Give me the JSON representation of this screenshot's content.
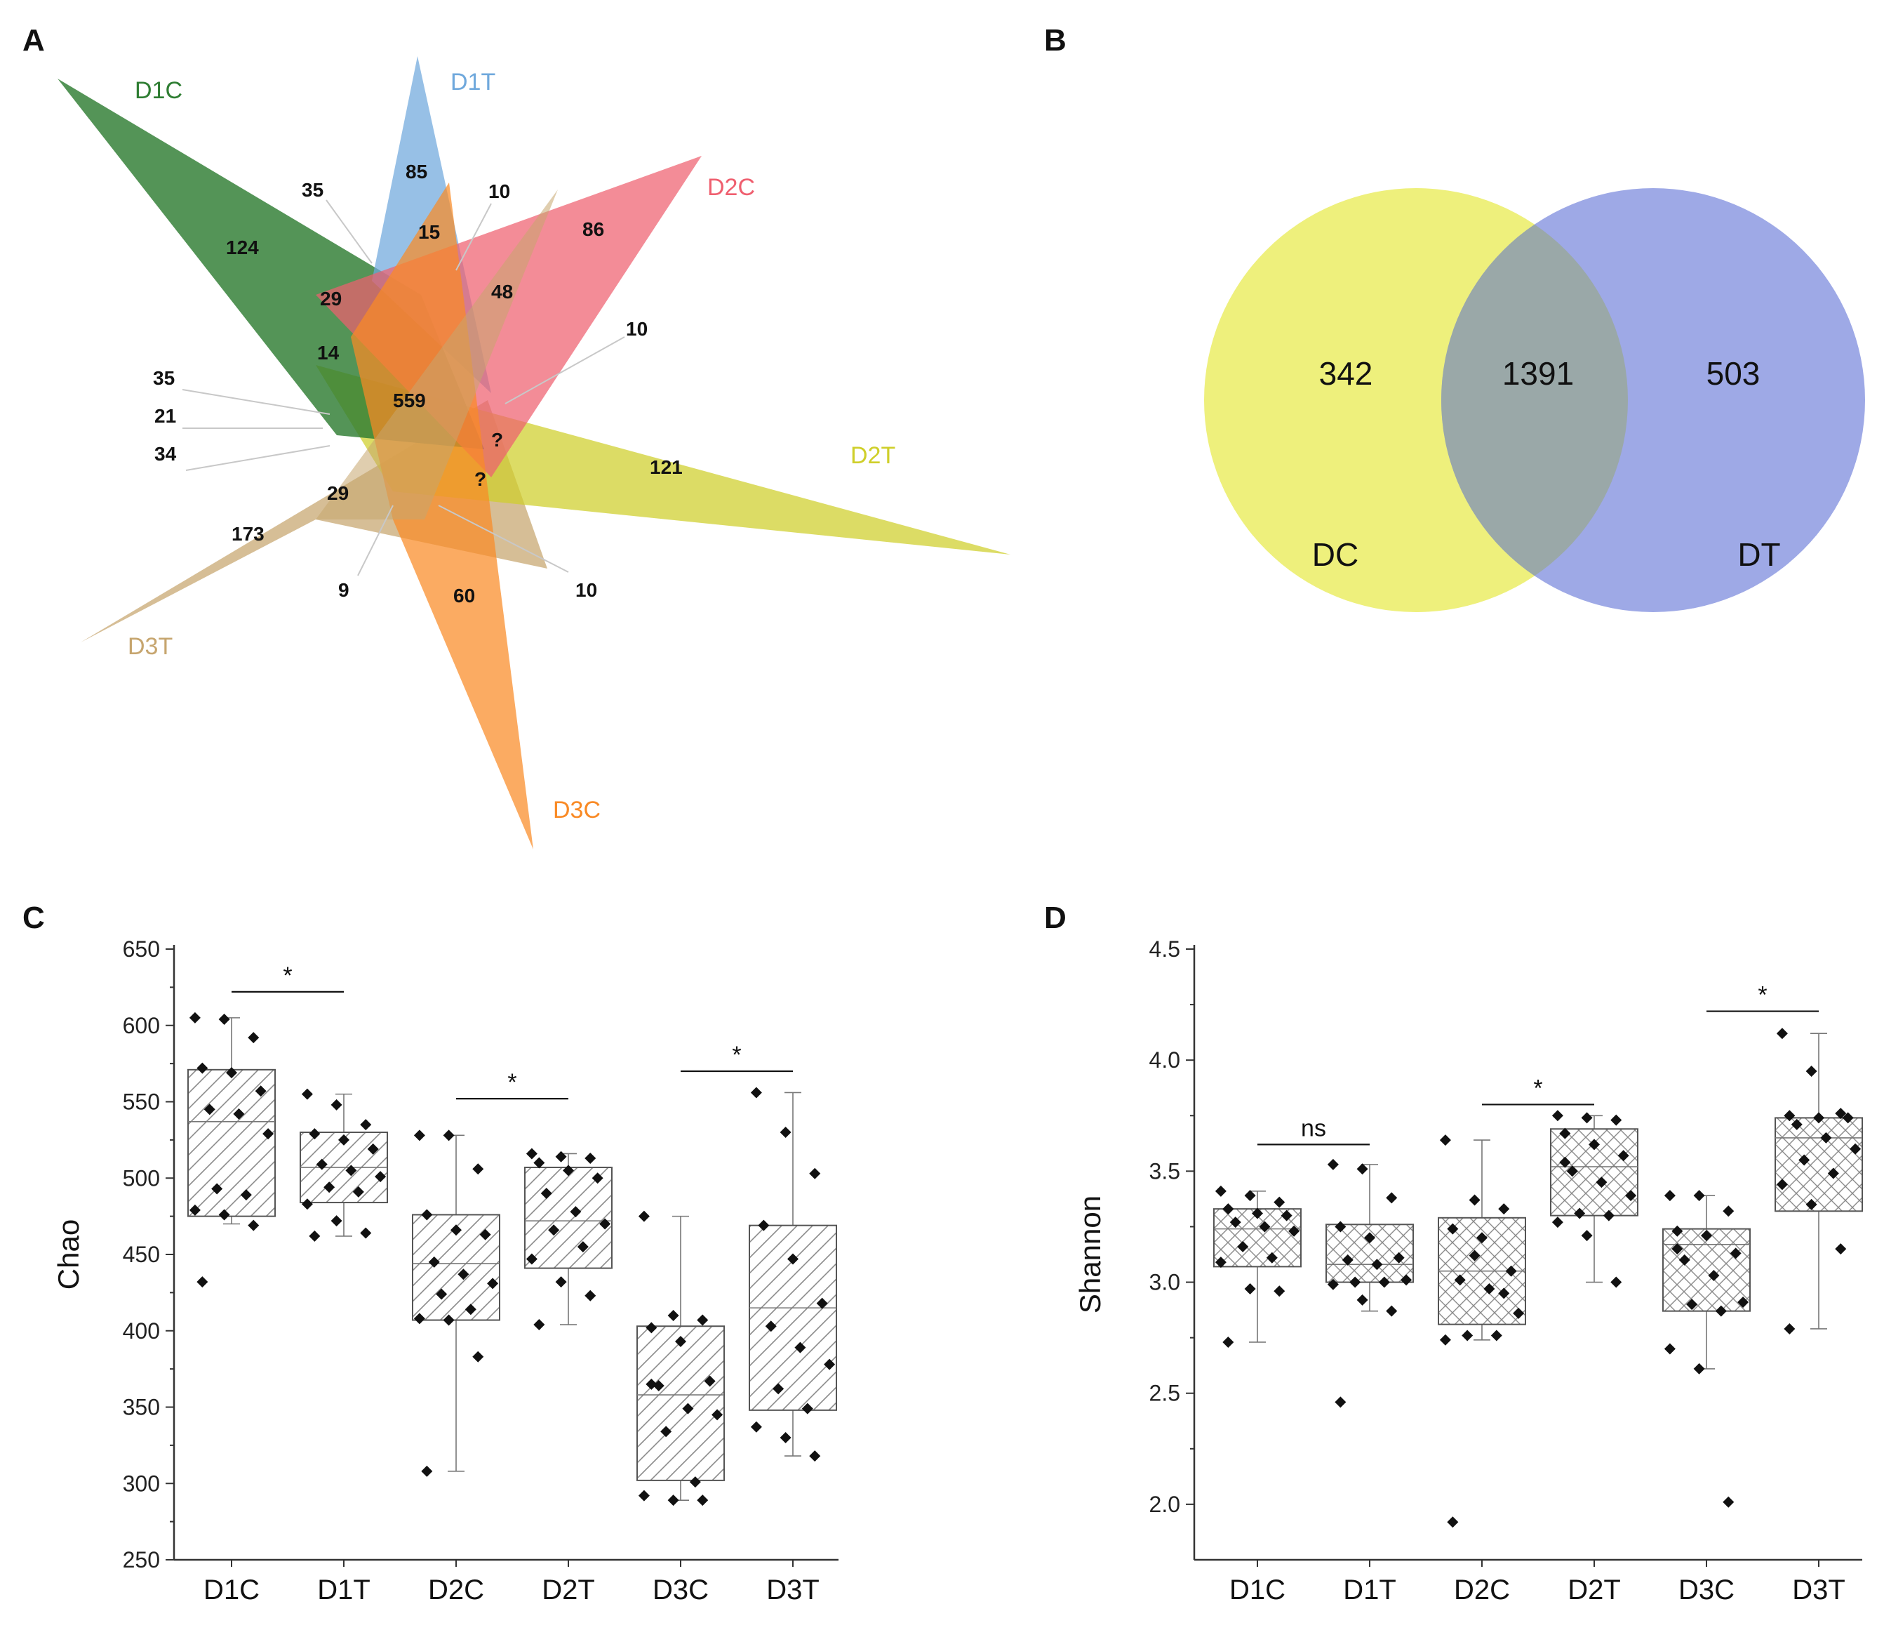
{
  "panels": {
    "a": "A",
    "b": "B",
    "c": "C",
    "d": "D"
  },
  "venn6": {
    "sets": [
      {
        "name": "D1C",
        "color": "#2e7d32"
      },
      {
        "name": "D1T",
        "color": "#6fa8dc"
      },
      {
        "name": "D2C",
        "color": "#ef5f6f"
      },
      {
        "name": "D2T",
        "color": "#cfcf2a"
      },
      {
        "name": "D3C",
        "color": "#f98a25"
      },
      {
        "name": "D3T",
        "color": "#c6a56e"
      }
    ],
    "numbers": [
      "124",
      "85",
      "86",
      "121",
      "60",
      "173",
      "35",
      "10",
      "15",
      "29",
      "48",
      "14",
      "559",
      "10",
      "35",
      "21",
      "34",
      "?",
      "?",
      "29",
      "9",
      "10"
    ]
  },
  "venn2": {
    "left_set": "DC",
    "right_set": "DT",
    "left_only": "342",
    "overlap": "1391",
    "right_only": "503",
    "left_color": "#eef07c",
    "right_color": "#9ea9e6",
    "overlap_color": "#9aa8a8"
  },
  "chart_data": [
    {
      "type": "box",
      "panel": "C",
      "ylabel": "Chao",
      "ylim": [
        250,
        650
      ],
      "yticks": [
        "250",
        "300",
        "350",
        "400",
        "450",
        "500",
        "550",
        "600",
        "650"
      ],
      "categories": [
        "D1C",
        "D1T",
        "D2C",
        "D2T",
        "D3C",
        "D3T"
      ],
      "hatch": "diagonal",
      "boxes": [
        {
          "q1": 475,
          "median": 537,
          "q3": 571,
          "whisker_low": 470,
          "whisker_high": 605,
          "points": [
            605,
            604,
            592,
            572,
            569,
            557,
            545,
            542,
            529,
            493,
            489,
            479,
            476,
            469,
            432
          ]
        },
        {
          "q1": 484,
          "median": 507,
          "q3": 530,
          "whisker_low": 462,
          "whisker_high": 555,
          "points": [
            555,
            548,
            535,
            529,
            525,
            519,
            509,
            505,
            501,
            494,
            491,
            483,
            472,
            464,
            462
          ]
        },
        {
          "q1": 407,
          "median": 444,
          "q3": 476,
          "whisker_low": 308,
          "whisker_high": 528,
          "points": [
            528,
            528,
            506,
            476,
            466,
            463,
            445,
            437,
            431,
            424,
            414,
            408,
            407,
            383,
            308
          ]
        },
        {
          "q1": 441,
          "median": 472,
          "q3": 507,
          "whisker_low": 404,
          "whisker_high": 516,
          "points": [
            516,
            514,
            513,
            510,
            505,
            500,
            490,
            478,
            470,
            466,
            455,
            447,
            432,
            423,
            404
          ]
        },
        {
          "q1": 302,
          "median": 358,
          "q3": 403,
          "whisker_low": 289,
          "whisker_high": 475,
          "points": [
            475,
            410,
            407,
            402,
            393,
            367,
            364,
            349,
            345,
            334,
            301,
            292,
            289,
            289,
            365
          ]
        },
        {
          "q1": 348,
          "median": 415,
          "q3": 469,
          "whisker_low": 318,
          "whisker_high": 556,
          "points": [
            556,
            530,
            503,
            469,
            447,
            418,
            403,
            389,
            378,
            362,
            349,
            337,
            330,
            318
          ]
        }
      ],
      "significance": [
        {
          "from": 0,
          "to": 1,
          "label": "*",
          "y": 622
        },
        {
          "from": 2,
          "to": 3,
          "label": "*",
          "y": 552
        },
        {
          "from": 4,
          "to": 5,
          "label": "*",
          "y": 570
        }
      ]
    },
    {
      "type": "box",
      "panel": "D",
      "ylabel": "Shannon",
      "ylim": [
        1.75,
        4.5
      ],
      "yticks": [
        "2.0",
        "2.5",
        "3.0",
        "3.5",
        "4.0",
        "4.5"
      ],
      "categories": [
        "D1C",
        "D1T",
        "D2C",
        "D2T",
        "D3C",
        "D3T"
      ],
      "hatch": "cross",
      "boxes": [
        {
          "q1": 3.07,
          "median": 3.24,
          "q3": 3.33,
          "whisker_low": 2.73,
          "whisker_high": 3.41,
          "points": [
            3.41,
            3.39,
            3.36,
            3.33,
            3.31,
            3.3,
            3.27,
            3.25,
            3.23,
            3.16,
            3.11,
            3.09,
            2.97,
            2.96,
            2.73
          ]
        },
        {
          "q1": 3.0,
          "median": 3.08,
          "q3": 3.26,
          "whisker_low": 2.87,
          "whisker_high": 3.53,
          "points": [
            3.53,
            3.51,
            3.38,
            3.25,
            3.2,
            3.11,
            3.1,
            3.08,
            3.01,
            3.0,
            3.0,
            2.99,
            2.92,
            2.87,
            2.46
          ]
        },
        {
          "q1": 2.81,
          "median": 3.05,
          "q3": 3.29,
          "whisker_low": 2.74,
          "whisker_high": 3.64,
          "points": [
            3.64,
            3.37,
            3.33,
            3.24,
            3.2,
            3.05,
            3.01,
            2.97,
            2.86,
            2.76,
            2.76,
            2.74,
            3.12,
            2.95,
            1.92
          ]
        },
        {
          "q1": 3.3,
          "median": 3.52,
          "q3": 3.69,
          "whisker_low": 3.0,
          "whisker_high": 3.75,
          "points": [
            3.75,
            3.74,
            3.73,
            3.67,
            3.62,
            3.57,
            3.5,
            3.45,
            3.39,
            3.31,
            3.3,
            3.27,
            3.21,
            3.0,
            3.54
          ]
        },
        {
          "q1": 2.87,
          "median": 3.17,
          "q3": 3.24,
          "whisker_low": 2.61,
          "whisker_high": 3.39,
          "points": [
            3.39,
            3.39,
            3.32,
            3.23,
            3.21,
            3.13,
            3.1,
            3.03,
            2.91,
            2.9,
            2.87,
            2.7,
            2.61,
            2.01,
            3.15
          ]
        },
        {
          "q1": 3.32,
          "median": 3.65,
          "q3": 3.74,
          "whisker_low": 2.79,
          "whisker_high": 4.12,
          "points": [
            4.12,
            3.95,
            3.76,
            3.75,
            3.74,
            3.74,
            3.71,
            3.65,
            3.6,
            3.55,
            3.49,
            3.44,
            3.35,
            3.15,
            2.79
          ]
        }
      ],
      "significance": [
        {
          "from": 0,
          "to": 1,
          "label": "ns",
          "y": 3.62
        },
        {
          "from": 2,
          "to": 3,
          "label": "*",
          "y": 3.8
        },
        {
          "from": 4,
          "to": 5,
          "label": "*",
          "y": 4.22
        }
      ]
    }
  ]
}
